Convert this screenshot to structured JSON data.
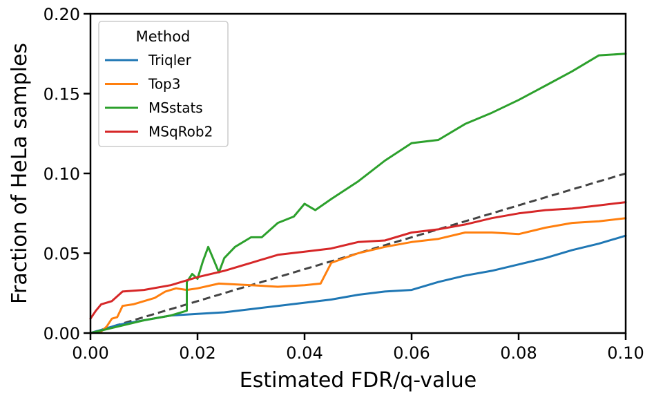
{
  "chart_data": {
    "type": "line",
    "xlabel": "Estimated FDR/q-value",
    "ylabel": "Fraction of HeLa samples",
    "xlim": [
      0,
      0.1
    ],
    "ylim": [
      0,
      0.2
    ],
    "x_ticks": [
      "0.00",
      "0.02",
      "0.04",
      "0.06",
      "0.08",
      "0.10"
    ],
    "y_ticks": [
      "0.00",
      "0.05",
      "0.10",
      "0.15",
      "0.20"
    ],
    "grid": false,
    "legend": {
      "title": "Method",
      "position": "top-left"
    },
    "reference_line": {
      "style": "dashed",
      "color": "#444444",
      "points": [
        [
          0,
          0
        ],
        [
          0.1,
          0.1
        ]
      ]
    },
    "series": [
      {
        "name": "Triqler",
        "color": "#1f77b4",
        "points": [
          [
            0,
            0
          ],
          [
            0.002,
            0.002
          ],
          [
            0.005,
            0.005
          ],
          [
            0.01,
            0.008
          ],
          [
            0.015,
            0.011
          ],
          [
            0.02,
            0.012
          ],
          [
            0.025,
            0.013
          ],
          [
            0.03,
            0.015
          ],
          [
            0.035,
            0.017
          ],
          [
            0.04,
            0.019
          ],
          [
            0.045,
            0.021
          ],
          [
            0.05,
            0.024
          ],
          [
            0.055,
            0.026
          ],
          [
            0.06,
            0.027
          ],
          [
            0.065,
            0.032
          ],
          [
            0.07,
            0.036
          ],
          [
            0.075,
            0.039
          ],
          [
            0.08,
            0.043
          ],
          [
            0.085,
            0.047
          ],
          [
            0.09,
            0.052
          ],
          [
            0.095,
            0.056
          ],
          [
            0.1,
            0.061
          ]
        ]
      },
      {
        "name": "Top3",
        "color": "#ff7f0e",
        "points": [
          [
            0,
            0
          ],
          [
            0.002,
            0.001
          ],
          [
            0.003,
            0.004
          ],
          [
            0.004,
            0.009
          ],
          [
            0.005,
            0.01
          ],
          [
            0.006,
            0.017
          ],
          [
            0.008,
            0.018
          ],
          [
            0.01,
            0.02
          ],
          [
            0.012,
            0.022
          ],
          [
            0.014,
            0.026
          ],
          [
            0.016,
            0.028
          ],
          [
            0.018,
            0.027
          ],
          [
            0.02,
            0.028
          ],
          [
            0.024,
            0.031
          ],
          [
            0.03,
            0.03
          ],
          [
            0.035,
            0.029
          ],
          [
            0.04,
            0.03
          ],
          [
            0.043,
            0.031
          ],
          [
            0.045,
            0.044
          ],
          [
            0.05,
            0.05
          ],
          [
            0.055,
            0.054
          ],
          [
            0.06,
            0.057
          ],
          [
            0.065,
            0.059
          ],
          [
            0.07,
            0.063
          ],
          [
            0.075,
            0.063
          ],
          [
            0.08,
            0.062
          ],
          [
            0.085,
            0.066
          ],
          [
            0.09,
            0.069
          ],
          [
            0.095,
            0.07
          ],
          [
            0.1,
            0.072
          ]
        ]
      },
      {
        "name": "MSstats",
        "color": "#2ca02c",
        "points": [
          [
            0,
            0
          ],
          [
            0.005,
            0.004
          ],
          [
            0.01,
            0.008
          ],
          [
            0.015,
            0.011
          ],
          [
            0.018,
            0.014
          ],
          [
            0.018,
            0.032
          ],
          [
            0.019,
            0.037
          ],
          [
            0.02,
            0.034
          ],
          [
            0.021,
            0.045
          ],
          [
            0.022,
            0.054
          ],
          [
            0.023,
            0.046
          ],
          [
            0.024,
            0.038
          ],
          [
            0.025,
            0.047
          ],
          [
            0.027,
            0.054
          ],
          [
            0.03,
            0.06
          ],
          [
            0.032,
            0.06
          ],
          [
            0.035,
            0.069
          ],
          [
            0.038,
            0.073
          ],
          [
            0.04,
            0.081
          ],
          [
            0.042,
            0.077
          ],
          [
            0.045,
            0.084
          ],
          [
            0.05,
            0.095
          ],
          [
            0.055,
            0.108
          ],
          [
            0.06,
            0.119
          ],
          [
            0.065,
            0.121
          ],
          [
            0.07,
            0.131
          ],
          [
            0.075,
            0.138
          ],
          [
            0.08,
            0.146
          ],
          [
            0.085,
            0.155
          ],
          [
            0.09,
            0.164
          ],
          [
            0.095,
            0.174
          ],
          [
            0.1,
            0.175
          ]
        ]
      },
      {
        "name": "MSqRob2",
        "color": "#d62728",
        "points": [
          [
            0,
            0.009
          ],
          [
            0.001,
            0.014
          ],
          [
            0.002,
            0.018
          ],
          [
            0.004,
            0.02
          ],
          [
            0.006,
            0.026
          ],
          [
            0.01,
            0.027
          ],
          [
            0.015,
            0.03
          ],
          [
            0.02,
            0.035
          ],
          [
            0.025,
            0.039
          ],
          [
            0.03,
            0.044
          ],
          [
            0.035,
            0.049
          ],
          [
            0.04,
            0.051
          ],
          [
            0.045,
            0.053
          ],
          [
            0.05,
            0.057
          ],
          [
            0.055,
            0.058
          ],
          [
            0.06,
            0.063
          ],
          [
            0.065,
            0.065
          ],
          [
            0.07,
            0.068
          ],
          [
            0.075,
            0.072
          ],
          [
            0.08,
            0.075
          ],
          [
            0.085,
            0.077
          ],
          [
            0.09,
            0.078
          ],
          [
            0.095,
            0.08
          ],
          [
            0.1,
            0.082
          ]
        ]
      }
    ]
  }
}
